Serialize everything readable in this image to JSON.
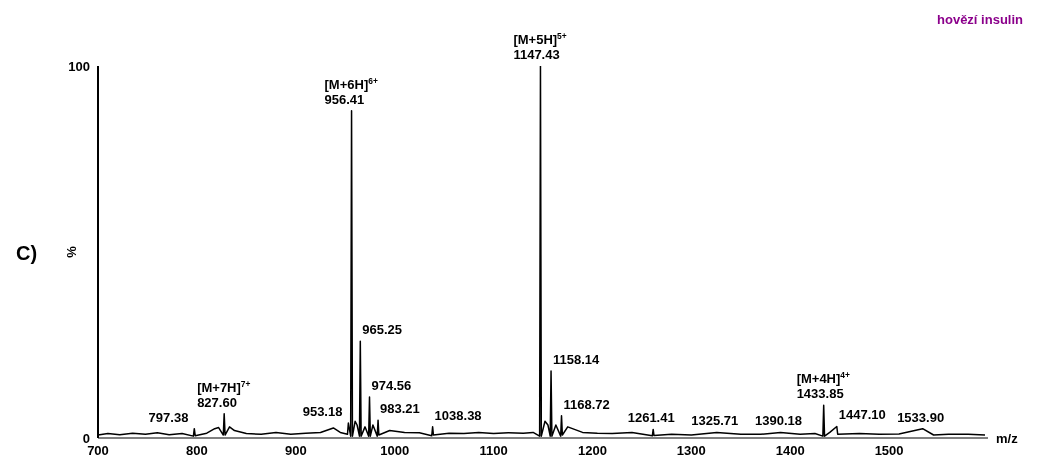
{
  "chart_data": {
    "type": "line",
    "title": "hovězí insulin",
    "xlabel": "m/z",
    "ylabel": "%",
    "xlim": [
      700,
      1600
    ],
    "ylim": [
      0,
      100
    ],
    "xticks": [
      700,
      800,
      900,
      1000,
      1100,
      1200,
      1300,
      1400,
      1500
    ],
    "yticks": [
      0,
      100
    ],
    "marker": "none",
    "series": [
      {
        "color": "#000000",
        "x": [
          700,
          710,
          722,
          735,
          748,
          760,
          772,
          785,
          796.5,
          797.38,
          798.3,
          810,
          818,
          822,
          826.7,
          827.6,
          828.5,
          833,
          838,
          850,
          865,
          880,
          895,
          910,
          925,
          938,
          945,
          952.3,
          953.18,
          955.5,
          956.41,
          957.3,
          960,
          962,
          964.4,
          965.25,
          966.1,
          970,
          973.7,
          974.56,
          975.4,
          978,
          982.4,
          983.21,
          984,
          995,
          1010,
          1025,
          1037.5,
          1038.38,
          1039.2,
          1055,
          1070,
          1085,
          1100,
          1115,
          1130,
          1140,
          1146.6,
          1147.43,
          1148.3,
          1152,
          1155,
          1157.3,
          1158.14,
          1159,
          1163,
          1167.9,
          1168.72,
          1169.6,
          1175,
          1190,
          1205,
          1220,
          1240,
          1260.6,
          1261.41,
          1262.2,
          1280,
          1300,
          1325.71,
          1350,
          1370,
          1390.18,
          1410,
          1425,
          1433,
          1433.85,
          1434.7,
          1440,
          1447.1,
          1448,
          1470,
          1490,
          1510,
          1533.9,
          1545,
          1560,
          1580,
          1597
        ],
        "values": [
          0.8,
          1.2,
          0.9,
          1.3,
          1.0,
          1.4,
          0.9,
          1.2,
          0.5,
          2.5,
          0.6,
          1.3,
          2.5,
          2.8,
          0.8,
          6.5,
          0.8,
          3.0,
          2.0,
          1.2,
          1.0,
          1.5,
          1.0,
          1.3,
          1.5,
          2.7,
          1.5,
          1.0,
          4.0,
          0.5,
          88,
          0.5,
          4.5,
          3.5,
          0.5,
          26,
          0.5,
          3.0,
          0.5,
          11,
          0.5,
          3.5,
          0.5,
          4.8,
          0.8,
          2.0,
          1.5,
          1.4,
          0.6,
          3.0,
          0.8,
          1.3,
          1.2,
          1.5,
          1.2,
          1.4,
          1.3,
          1.5,
          0.5,
          100,
          0.5,
          4.5,
          3.5,
          0.5,
          18,
          0.5,
          3.5,
          0.5,
          6,
          0.8,
          3.0,
          1.5,
          1.3,
          1.2,
          1.5,
          0.6,
          2.3,
          0.7,
          1.0,
          0.8,
          1.5,
          1.0,
          1.0,
          1.5,
          1.0,
          1.2,
          0.5,
          8.8,
          0.5,
          1.5,
          3.1,
          1.0,
          1.2,
          1.0,
          1.1,
          2.5,
          0.8,
          1.0,
          1.0,
          0.8
        ]
      }
    ],
    "annotations": [
      "C)",
      {
        "text": "[M+5H]$^{5+}$\n1147.43",
        "x": 1147.43,
        "y": 100
      },
      {
        "text": "[M+6H]$^{6+}$\n956.41",
        "x": 956.41,
        "y": 88
      },
      {
        "text": "965.25",
        "x": 965.25,
        "y": 26
      },
      {
        "text": "1158.14",
        "x": 1158.14,
        "y": 18
      },
      {
        "text": "974.56",
        "x": 974.56,
        "y": 11
      },
      {
        "text": "[M+4H]$^{4+}$\n1433.85",
        "x": 1433.85,
        "y": 8.8
      },
      {
        "text": "[M+7H]$^{7+}$\n827.60",
        "x": 827.6,
        "y": 6.5
      },
      {
        "text": "1168.72",
        "x": 1168.72,
        "y": 6
      },
      {
        "text": "983.21",
        "x": 983.21,
        "y": 4.8
      },
      {
        "text": "953.18",
        "x": 953.18,
        "y": 4
      },
      {
        "text": "1447.10",
        "x": 1447.1,
        "y": 3.1
      },
      {
        "text": "1038.38",
        "x": 1038.38,
        "y": 3
      },
      {
        "text": "797.38",
        "x": 797.38,
        "y": 2.5
      },
      {
        "text": "1533.90",
        "x": 1533.9,
        "y": 2.5
      },
      {
        "text": "1261.41",
        "x": 1261.41,
        "y": 2.3
      },
      {
        "text": "1325.71",
        "x": 1325.71,
        "y": 1.5
      },
      {
        "text": "1390.18",
        "x": 1390.18,
        "y": 1.5
      }
    ]
  }
}
